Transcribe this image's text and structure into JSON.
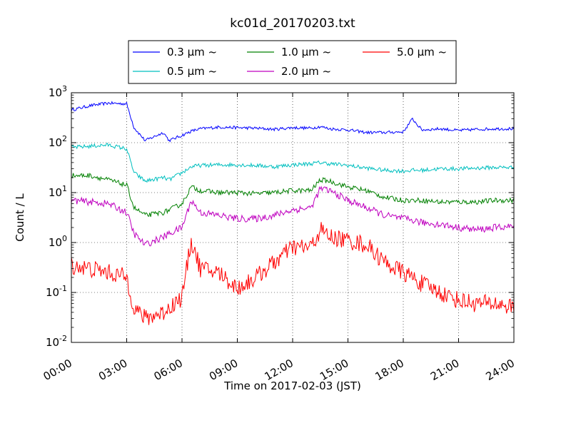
{
  "chart_data": {
    "type": "line",
    "title": "kc01d_20170203.txt",
    "xlabel": "Time on 2017-02-03 (JST)",
    "ylabel": "Count / L",
    "xlim": [
      "00:00",
      "24:00"
    ],
    "ylim": [
      0.01,
      1000
    ],
    "yscale": "log",
    "grid": true,
    "legend_position": "top-center",
    "x_ticks": [
      "00:00",
      "03:00",
      "06:00",
      "09:00",
      "12:00",
      "15:00",
      "18:00",
      "21:00",
      "24:00"
    ],
    "y_ticks": [
      {
        "value": 0.01,
        "base": "10",
        "exp": "-2"
      },
      {
        "value": 0.1,
        "base": "10",
        "exp": "-1"
      },
      {
        "value": 1,
        "base": "10",
        "exp": "0"
      },
      {
        "value": 10,
        "base": "10",
        "exp": "1"
      },
      {
        "value": 100,
        "base": "10",
        "exp": "2"
      },
      {
        "value": 1000,
        "base": "10",
        "exp": "3"
      }
    ],
    "x_hours": [
      0,
      1,
      2,
      3,
      3.4,
      4,
      5,
      5.3,
      6,
      6.5,
      7,
      8,
      9,
      10,
      11,
      12,
      13,
      13.5,
      14,
      15,
      16,
      17,
      18,
      18.5,
      19,
      20,
      21,
      22,
      23,
      24
    ],
    "series": [
      {
        "name": "0.3 μm ~",
        "color": "#0000ff",
        "values": [
          450,
          550,
          620,
          600,
          200,
          110,
          160,
          110,
          140,
          170,
          190,
          205,
          200,
          195,
          185,
          200,
          195,
          210,
          190,
          180,
          160,
          160,
          165,
          300,
          180,
          190,
          175,
          185,
          190,
          190
        ]
      },
      {
        "name": "0.5 μm ~",
        "color": "#00bfbf",
        "values": [
          80,
          85,
          90,
          75,
          25,
          17,
          20,
          18,
          25,
          33,
          35,
          36,
          36,
          35,
          33,
          36,
          38,
          40,
          38,
          35,
          31,
          28,
          27,
          28,
          28,
          30,
          30,
          31,
          32,
          32
        ]
      },
      {
        "name": "1.0 μm ~",
        "color": "#008000",
        "values": [
          22,
          22,
          18,
          14,
          5,
          3.5,
          4,
          4.5,
          6,
          13,
          11,
          10,
          10,
          9.5,
          10,
          11,
          11,
          18,
          17,
          13,
          11,
          8,
          7,
          7,
          7,
          6.5,
          6.5,
          6.5,
          7,
          7
        ]
      },
      {
        "name": "2.0 μm ~",
        "color": "#bf00bf",
        "values": [
          7,
          6.5,
          6,
          4,
          1.5,
          0.9,
          1.3,
          1.5,
          2,
          7,
          4,
          3.5,
          3,
          3,
          3.5,
          4.5,
          5,
          12,
          11,
          7,
          5,
          3.5,
          3,
          2.8,
          2.5,
          2.3,
          2,
          1.8,
          2,
          2.1
        ]
      },
      {
        "name": "5.0 μm ~",
        "color": "#ff0000",
        "values": [
          0.35,
          0.3,
          0.25,
          0.2,
          0.05,
          0.03,
          0.04,
          0.05,
          0.08,
          1.1,
          0.3,
          0.25,
          0.12,
          0.2,
          0.4,
          0.8,
          0.8,
          1.8,
          1.3,
          1.1,
          0.9,
          0.4,
          0.25,
          0.2,
          0.15,
          0.1,
          0.07,
          0.06,
          0.06,
          0.05
        ]
      }
    ]
  }
}
